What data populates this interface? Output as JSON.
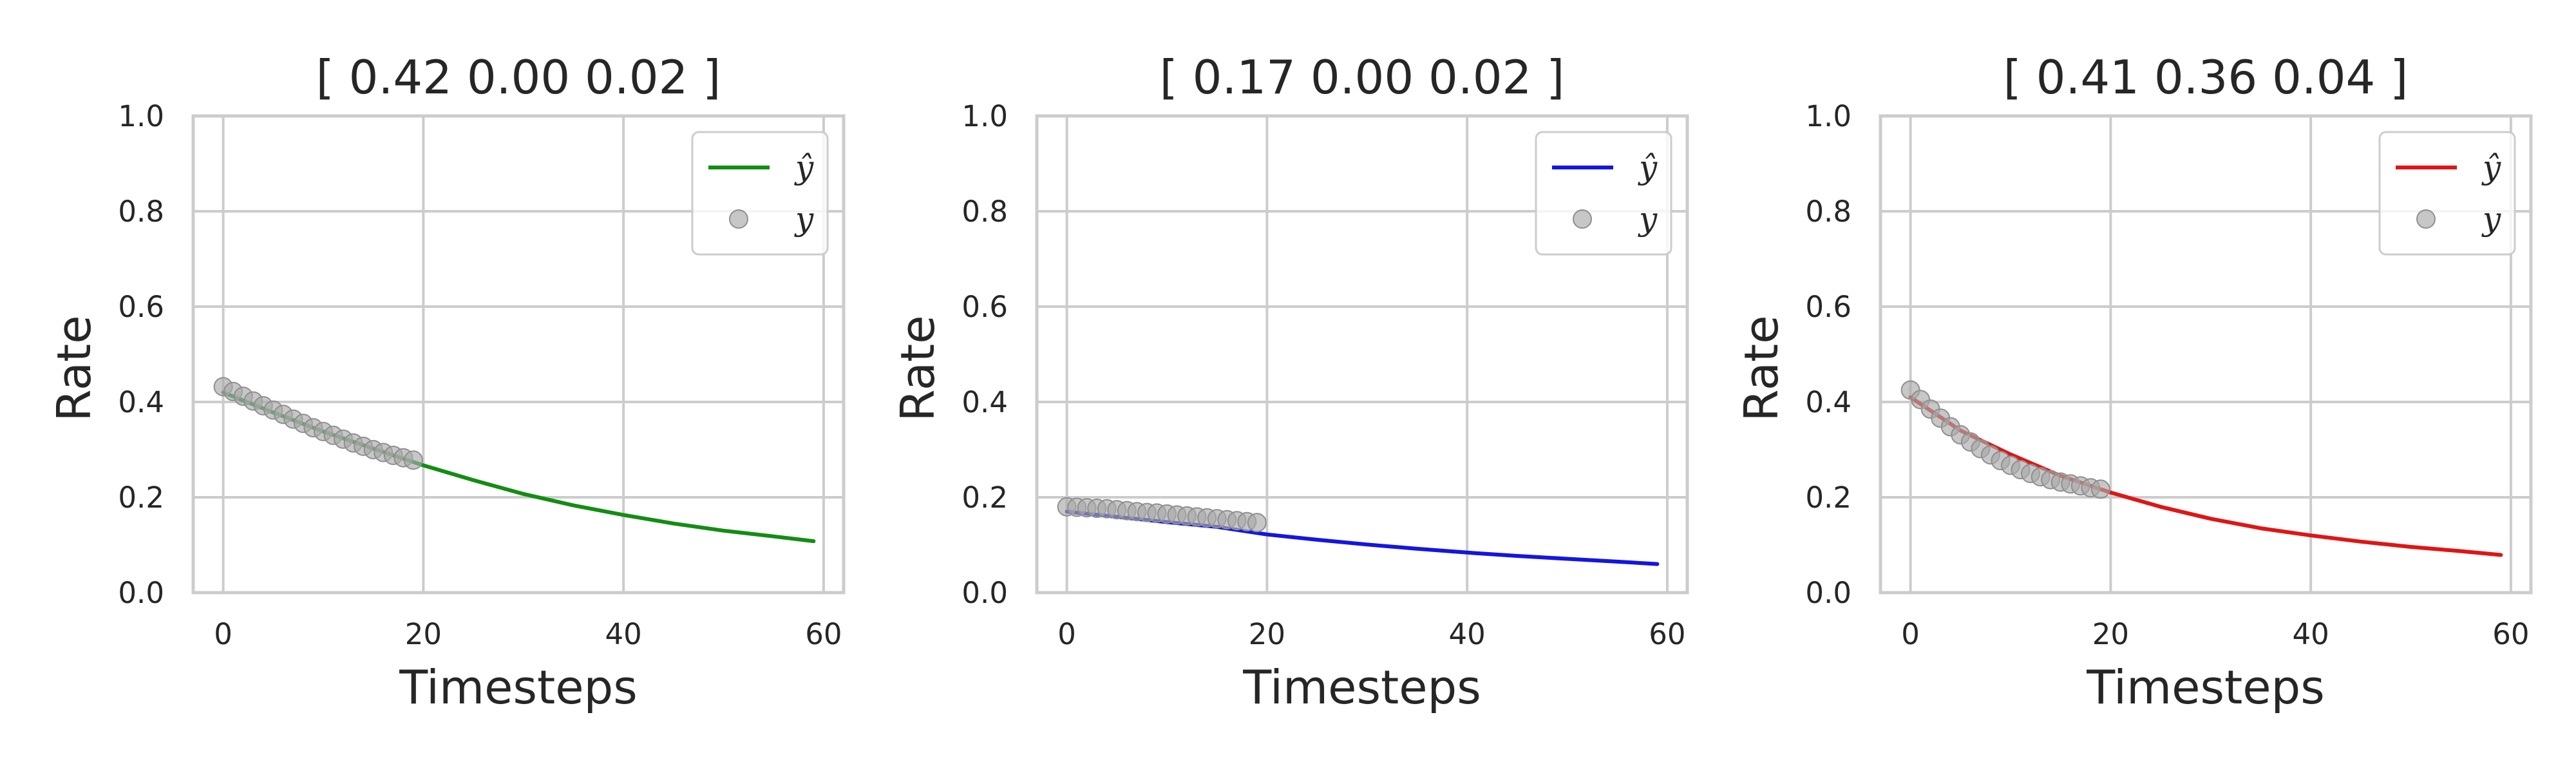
{
  "chart_data": [
    {
      "type": "line",
      "title": "[ 0.42 0.00 0.02 ]",
      "xlabel": "Timesteps",
      "ylabel": "Rate",
      "xlim": [
        -3,
        62
      ],
      "ylim": [
        0,
        1
      ],
      "xticks": [
        0,
        20,
        40,
        60
      ],
      "yticks": [
        0.0,
        0.2,
        0.4,
        0.6,
        0.8,
        1.0
      ],
      "xtick_labels": [
        "0",
        "20",
        "40",
        "60"
      ],
      "ytick_labels": [
        "0.0",
        "0.2",
        "0.4",
        "0.6",
        "0.8",
        "1.0"
      ],
      "grid": true,
      "legend": "top-right",
      "series": [
        {
          "name": "ŷ",
          "kind": "line",
          "color": "#138d13",
          "x": [
            0,
            5,
            10,
            15,
            20,
            25,
            30,
            35,
            40,
            45,
            50,
            55,
            59
          ],
          "y": [
            0.42,
            0.378,
            0.338,
            0.302,
            0.267,
            0.236,
            0.207,
            0.183,
            0.163,
            0.145,
            0.13,
            0.118,
            0.108
          ]
        },
        {
          "name": "y",
          "kind": "scatter",
          "color": "#a9a9a9",
          "x": [
            0,
            1,
            2,
            3,
            4,
            5,
            6,
            7,
            8,
            9,
            10,
            11,
            12,
            13,
            14,
            15,
            16,
            17,
            18,
            19
          ],
          "y": [
            0.432,
            0.422,
            0.412,
            0.402,
            0.392,
            0.383,
            0.374,
            0.364,
            0.355,
            0.346,
            0.338,
            0.33,
            0.322,
            0.314,
            0.307,
            0.3,
            0.294,
            0.288,
            0.283,
            0.278
          ]
        }
      ]
    },
    {
      "type": "line",
      "title": "[ 0.17 0.00 0.02 ]",
      "xlabel": "Timesteps",
      "ylabel": "Rate",
      "xlim": [
        -3,
        62
      ],
      "ylim": [
        0,
        1
      ],
      "xticks": [
        0,
        20,
        40,
        60
      ],
      "yticks": [
        0.0,
        0.2,
        0.4,
        0.6,
        0.8,
        1.0
      ],
      "xtick_labels": [
        "0",
        "20",
        "40",
        "60"
      ],
      "ytick_labels": [
        "0.0",
        "0.2",
        "0.4",
        "0.6",
        "0.8",
        "1.0"
      ],
      "grid": true,
      "legend": "top-right",
      "series": [
        {
          "name": "ŷ",
          "kind": "line",
          "color": "#1515e0",
          "x": [
            0,
            5,
            10,
            15,
            20,
            25,
            30,
            35,
            40,
            45,
            50,
            55,
            59
          ],
          "y": [
            0.17,
            0.159,
            0.148,
            0.138,
            0.122,
            0.111,
            0.101,
            0.092,
            0.084,
            0.077,
            0.071,
            0.065,
            0.06
          ]
        },
        {
          "name": "y",
          "kind": "scatter",
          "color": "#a9a9a9",
          "x": [
            0,
            1,
            2,
            3,
            4,
            5,
            6,
            7,
            8,
            9,
            10,
            11,
            12,
            13,
            14,
            15,
            16,
            17,
            18,
            19
          ],
          "y": [
            0.18,
            0.179,
            0.178,
            0.177,
            0.176,
            0.174,
            0.172,
            0.17,
            0.168,
            0.167,
            0.165,
            0.163,
            0.161,
            0.159,
            0.157,
            0.155,
            0.153,
            0.151,
            0.149,
            0.147
          ]
        }
      ]
    },
    {
      "type": "line",
      "title": "[ 0.41 0.36 0.04 ]",
      "xlabel": "Timesteps",
      "ylabel": "Rate",
      "xlim": [
        -3,
        62
      ],
      "ylim": [
        0,
        1
      ],
      "xticks": [
        0,
        20,
        40,
        60
      ],
      "yticks": [
        0.0,
        0.2,
        0.4,
        0.6,
        0.8,
        1.0
      ],
      "xtick_labels": [
        "0",
        "20",
        "40",
        "60"
      ],
      "ytick_labels": [
        "0.0",
        "0.2",
        "0.4",
        "0.6",
        "0.8",
        "1.0"
      ],
      "grid": true,
      "legend": "top-right",
      "series": [
        {
          "name": "ŷ",
          "kind": "line",
          "color": "#e01515",
          "x": [
            0,
            5,
            10,
            15,
            20,
            25,
            30,
            35,
            40,
            45,
            50,
            55,
            59
          ],
          "y": [
            0.41,
            0.34,
            0.29,
            0.245,
            0.21,
            0.18,
            0.155,
            0.135,
            0.12,
            0.107,
            0.096,
            0.087,
            0.079
          ]
        },
        {
          "name": "y",
          "kind": "scatter",
          "color": "#a9a9a9",
          "x": [
            0,
            1,
            2,
            3,
            4,
            5,
            6,
            7,
            8,
            9,
            10,
            11,
            12,
            13,
            14,
            15,
            16,
            17,
            18,
            19
          ],
          "y": [
            0.425,
            0.405,
            0.385,
            0.366,
            0.348,
            0.331,
            0.316,
            0.302,
            0.289,
            0.277,
            0.267,
            0.258,
            0.25,
            0.243,
            0.237,
            0.232,
            0.228,
            0.224,
            0.22,
            0.217
          ]
        }
      ]
    }
  ]
}
